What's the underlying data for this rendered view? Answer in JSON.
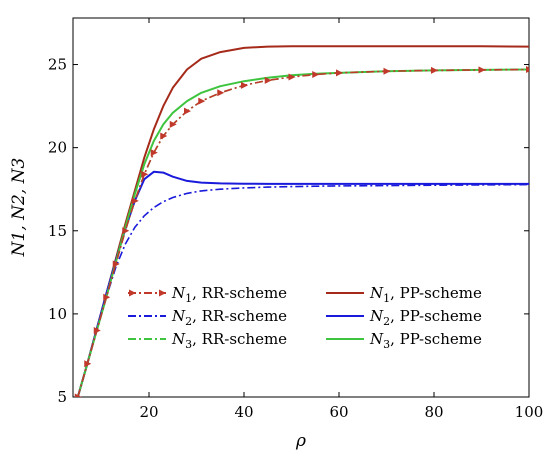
{
  "chart_data": {
    "type": "line",
    "xlabel": "ρ",
    "ylabel": "N1, N2, N3",
    "xlim": [
      4,
      100
    ],
    "ylim": [
      5,
      27.8
    ],
    "x_ticks": [
      20,
      40,
      60,
      80,
      100
    ],
    "y_ticks": [
      5,
      10,
      15,
      20,
      25
    ],
    "grid": false,
    "legend_placement": "lower-right",
    "x": [
      5,
      7,
      9,
      11,
      13,
      15,
      17,
      19,
      21,
      23,
      25,
      28,
      31,
      35,
      40,
      45,
      50,
      55,
      60,
      70,
      80,
      90,
      100
    ],
    "series": [
      {
        "name": "N1, RR-scheme",
        "legend_var": "N",
        "legend_sub": "1",
        "legend_suffix": ", RR-scheme",
        "color": "#c0392b",
        "dash": "8,3,2,3",
        "marker": "triangle-right",
        "values": [
          5.0,
          7.0,
          9.0,
          11.0,
          13.0,
          15.0,
          16.8,
          18.4,
          19.7,
          20.7,
          21.4,
          22.2,
          22.8,
          23.3,
          23.75,
          24.05,
          24.25,
          24.4,
          24.5,
          24.6,
          24.65,
          24.68,
          24.7
        ]
      },
      {
        "name": "N2, RR-scheme",
        "legend_var": "N",
        "legend_sub": "2",
        "legend_suffix": ", RR-scheme",
        "color": "#1a1adb",
        "dash": "8,3,2,3",
        "values": [
          5.0,
          7.0,
          9.0,
          11.0,
          12.8,
          14.2,
          15.2,
          15.9,
          16.4,
          16.75,
          17.0,
          17.25,
          17.4,
          17.5,
          17.58,
          17.63,
          17.66,
          17.68,
          17.7,
          17.72,
          17.74,
          17.76,
          17.78
        ]
      },
      {
        "name": "N3, RR-scheme",
        "legend_var": "N",
        "legend_sub": "3",
        "legend_suffix": ", RR-scheme",
        "color": "#3ec43e",
        "dash": "8,3,2,3",
        "values": [
          5.0,
          7.0,
          9.0,
          11.0,
          13.0,
          15.0,
          16.8,
          18.4,
          19.7,
          20.7,
          21.4,
          22.2,
          22.8,
          23.3,
          23.75,
          24.05,
          24.25,
          24.4,
          24.5,
          24.6,
          24.65,
          24.68,
          24.7
        ]
      },
      {
        "name": "N1, PP-scheme",
        "legend_var": "N",
        "legend_sub": "1",
        "legend_suffix": ", PP-scheme",
        "color": "#a52a1a",
        "dash": "",
        "values": [
          5.0,
          7.0,
          9.1,
          11.2,
          13.3,
          15.4,
          17.4,
          19.4,
          21.1,
          22.5,
          23.6,
          24.7,
          25.35,
          25.75,
          26.0,
          26.08,
          26.1,
          26.1,
          26.1,
          26.1,
          26.1,
          26.1,
          26.08
        ]
      },
      {
        "name": "N2, PP-scheme",
        "legend_var": "N",
        "legend_sub": "2",
        "legend_suffix": ", PP-scheme",
        "color": "#1a1adb",
        "dash": "",
        "values": [
          5.0,
          7.0,
          9.1,
          11.2,
          13.2,
          15.1,
          16.8,
          18.1,
          18.55,
          18.5,
          18.25,
          18.0,
          17.9,
          17.85,
          17.83,
          17.82,
          17.82,
          17.82,
          17.82,
          17.82,
          17.82,
          17.82,
          17.82
        ]
      },
      {
        "name": "N3, PP-scheme",
        "legend_var": "N",
        "legend_sub": "3",
        "legend_suffix": ", PP-scheme",
        "color": "#3ec43e",
        "dash": "",
        "values": [
          5.0,
          7.0,
          9.0,
          11.0,
          13.1,
          15.2,
          17.2,
          19.0,
          20.4,
          21.4,
          22.1,
          22.8,
          23.3,
          23.7,
          24.0,
          24.2,
          24.35,
          24.45,
          24.5,
          24.6,
          24.65,
          24.68,
          24.7
        ]
      }
    ]
  }
}
